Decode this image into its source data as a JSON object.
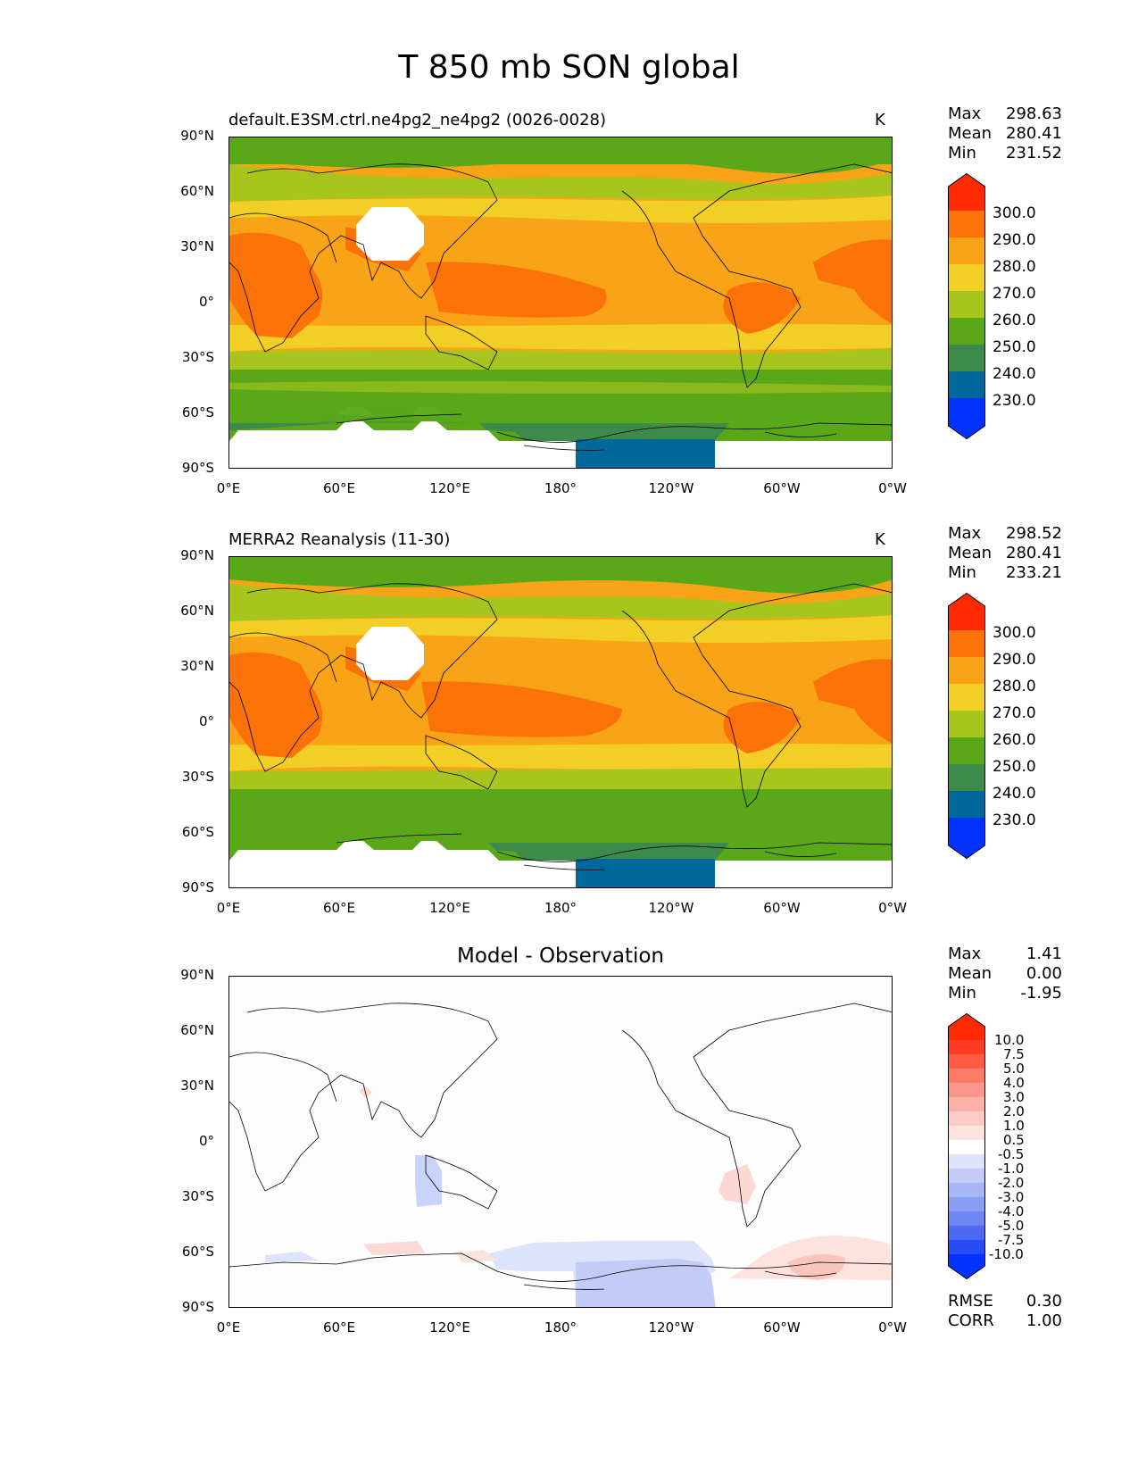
{
  "figure_title": "T 850 mb SON global",
  "panels": [
    {
      "title_left": "default.E3SM.ctrl.ne4pg2_ne4pg2 (0026-0028)",
      "unit": "K",
      "stats": {
        "max_label": "Max",
        "max": "298.63",
        "mean_label": "Mean",
        "mean": "280.41",
        "min_label": "Min",
        "min": "231.52"
      },
      "colorbar_labels": [
        "300.0",
        "290.0",
        "280.0",
        "270.0",
        "260.0",
        "250.0",
        "240.0",
        "230.0"
      ]
    },
    {
      "title_left": "MERRA2 Reanalysis (11-30)",
      "unit": "K",
      "stats": {
        "max_label": "Max",
        "max": "298.52",
        "mean_label": "Mean",
        "mean": "280.41",
        "min_label": "Min",
        "min": "233.21"
      },
      "colorbar_labels": [
        "300.0",
        "290.0",
        "280.0",
        "270.0",
        "260.0",
        "250.0",
        "240.0",
        "230.0"
      ]
    },
    {
      "title_center": "Model - Observation",
      "stats": {
        "max_label": "Max",
        "max": "1.41",
        "mean_label": "Mean",
        "mean": "0.00",
        "min_label": "Min",
        "min": "-1.95"
      },
      "colorbar_labels": [
        "10.0",
        "7.5",
        "5.0",
        "4.0",
        "3.0",
        "2.0",
        "1.0",
        "0.5",
        "-0.5",
        "-1.0",
        "-2.0",
        "-3.0",
        "-4.0",
        "-5.0",
        "-7.5",
        "-10.0"
      ],
      "footer": {
        "rmse_label": "RMSE",
        "rmse": "0.30",
        "corr_label": "CORR",
        "corr": "1.00"
      }
    }
  ],
  "axes": {
    "y_ticks": [
      "90°N",
      "60°N",
      "30°N",
      "0°",
      "30°S",
      "60°S",
      "90°S"
    ],
    "x_ticks": [
      "0°E",
      "60°E",
      "120°E",
      "180°",
      "120°W",
      "60°W",
      "0°W"
    ]
  },
  "chart_data": [
    {
      "type": "heatmap",
      "title": "default.E3SM.ctrl.ne4pg2_ne4pg2 (0026-0028)",
      "units": "K",
      "colorbar_levels": [
        230,
        240,
        250,
        260,
        270,
        280,
        290,
        300
      ],
      "colors": [
        "#0033ff",
        "#00689a",
        "#3d8a4a",
        "#5aa817",
        "#a8c51e",
        "#f2cf26",
        "#f9a416",
        "#fb7308",
        "#ff2a00"
      ],
      "stats": {
        "max": 298.63,
        "mean": 280.41,
        "min": 231.52
      }
    },
    {
      "type": "heatmap",
      "title": "MERRA2 Reanalysis (11-30)",
      "units": "K",
      "colorbar_levels": [
        230,
        240,
        250,
        260,
        270,
        280,
        290,
        300
      ],
      "colors": [
        "#0033ff",
        "#00689a",
        "#3d8a4a",
        "#5aa817",
        "#a8c51e",
        "#f2cf26",
        "#f9a416",
        "#fb7308",
        "#ff2a00"
      ],
      "stats": {
        "max": 298.52,
        "mean": 280.41,
        "min": 233.21
      }
    },
    {
      "type": "heatmap",
      "title": "Model - Observation",
      "colorbar_levels": [
        -10,
        -7.5,
        -5,
        -4,
        -3,
        -2,
        -1,
        -0.5,
        0.5,
        1,
        2,
        3,
        4,
        5,
        7.5,
        10
      ],
      "stats": {
        "max": 1.41,
        "mean": 0.0,
        "min": -1.95,
        "rmse": 0.3,
        "corr": 1.0
      }
    }
  ]
}
